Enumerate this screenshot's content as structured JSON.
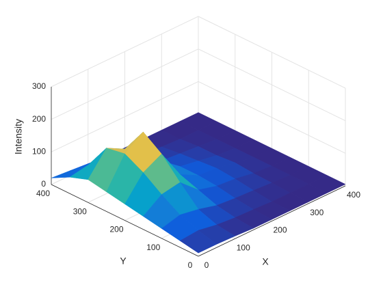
{
  "chart_data": {
    "type": "surface",
    "xlabel": "X",
    "ylabel": "Y",
    "zlabel": "Intensity",
    "x": [
      0,
      50,
      100,
      150,
      200,
      250,
      300,
      350,
      400
    ],
    "y": [
      0,
      50,
      100,
      150,
      200,
      250,
      300,
      350,
      400
    ],
    "z": [
      [
        10,
        10,
        8,
        5,
        5,
        5,
        5,
        5,
        5
      ],
      [
        20,
        25,
        15,
        10,
        8,
        5,
        5,
        5,
        5
      ],
      [
        30,
        45,
        35,
        20,
        15,
        12,
        8,
        5,
        5
      ],
      [
        40,
        80,
        90,
        40,
        25,
        20,
        10,
        5,
        5
      ],
      [
        50,
        120,
        150,
        60,
        30,
        25,
        15,
        5,
        5
      ],
      [
        60,
        150,
        190,
        70,
        30,
        20,
        10,
        5,
        5
      ],
      [
        70,
        140,
        110,
        40,
        20,
        15,
        10,
        5,
        5
      ],
      [
        50,
        60,
        40,
        20,
        10,
        8,
        5,
        5,
        5
      ],
      [
        20,
        15,
        10,
        5,
        5,
        5,
        5,
        5,
        5
      ]
    ],
    "xlim": [
      0,
      400
    ],
    "ylim": [
      0,
      400
    ],
    "zlim": [
      0,
      300
    ],
    "xticks": [
      0,
      100,
      200,
      300,
      400
    ],
    "yticks": [
      0,
      100,
      200,
      300,
      400
    ],
    "zticks": [
      0,
      100,
      200,
      300
    ],
    "grid": true,
    "colormap": [
      "#352a87",
      "#0f5cdd",
      "#1481d6",
      "#06a4ca",
      "#2eb7a4",
      "#87bf77",
      "#d1bb59",
      "#fec832",
      "#f9fb0e"
    ]
  }
}
